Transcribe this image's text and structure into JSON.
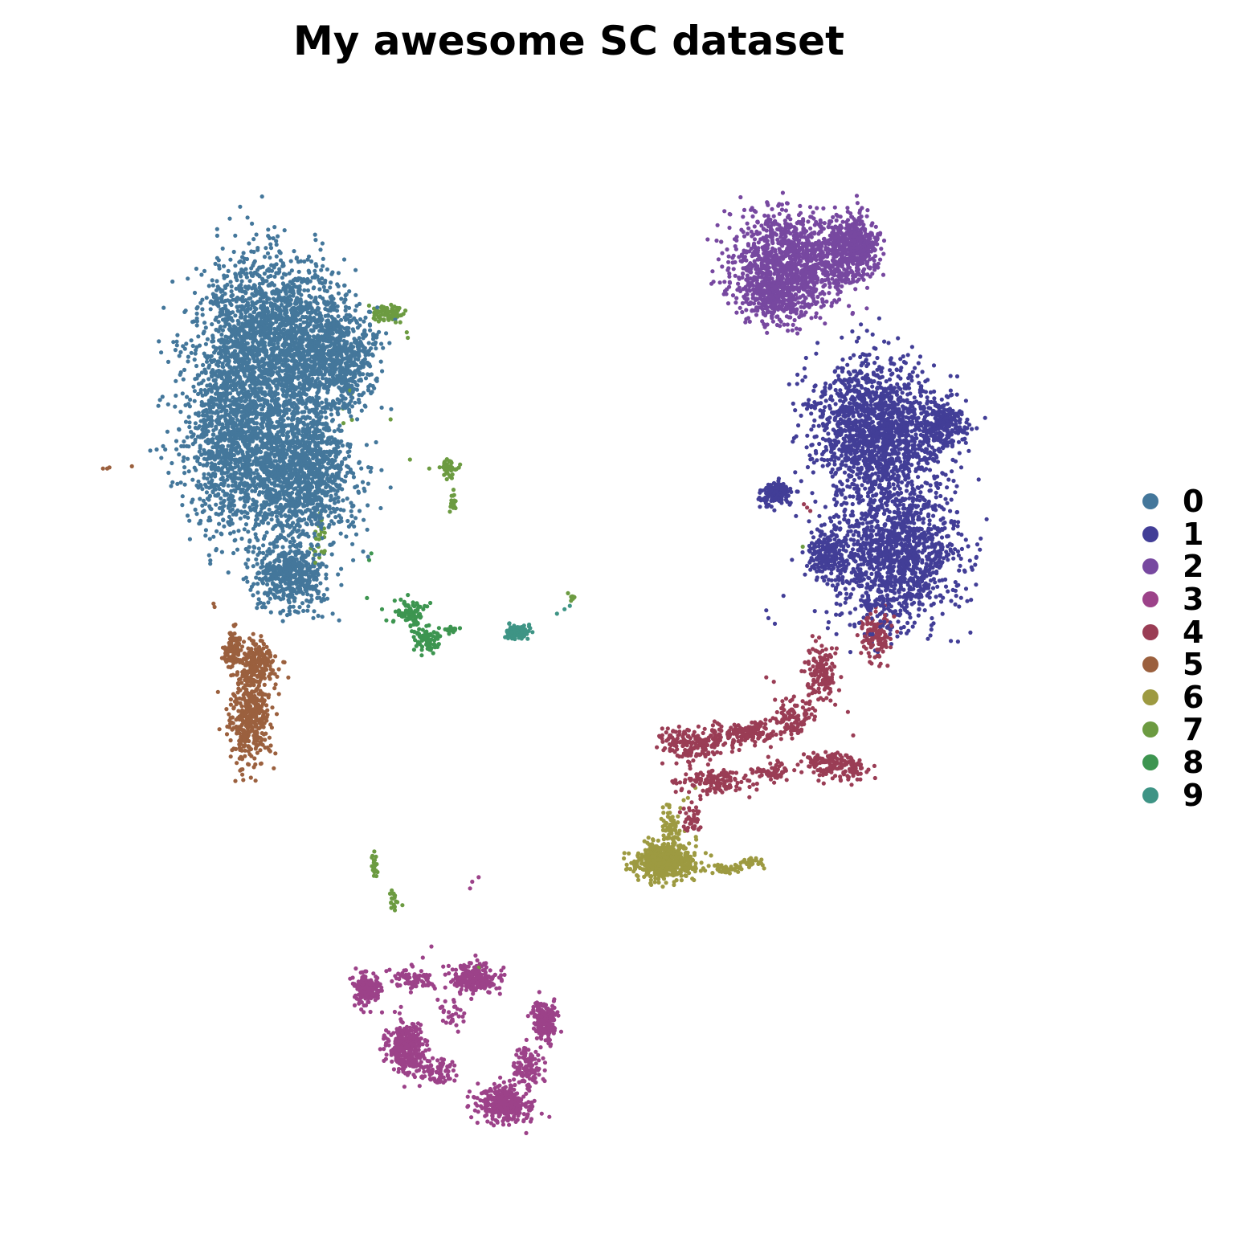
{
  "chart_data": {
    "type": "scatter",
    "title": "My awesome SC dataset",
    "xlabel": "",
    "ylabel": "",
    "xlim": [
      0,
      100
    ],
    "ylim": [
      0,
      100
    ],
    "grid": false,
    "legend_placement": "right",
    "series": [
      {
        "name": "0",
        "color": "#44779b",
        "count": 5600,
        "blobs": [
          [
            21.4,
            72.9,
            6.0,
            9.0,
            0.25
          ],
          [
            23.2,
            78.3,
            5.2,
            5.5,
            0.2
          ],
          [
            25.3,
            65.0,
            4.0,
            5.3,
            0.2
          ],
          [
            18.5,
            68.0,
            3.6,
            7.0,
            0.15
          ],
          [
            28.3,
            75.5,
            3.5,
            4.0,
            0.12
          ],
          [
            24.0,
            56.0,
            3.0,
            2.5,
            0.08
          ]
        ],
        "points": [
          [
            11.0,
            67.2
          ],
          [
            11.6,
            67.3
          ],
          [
            12.2,
            67.6
          ],
          [
            12.4,
            67.3
          ],
          [
            13.9,
            67.6
          ],
          [
            14.4,
            67.6
          ],
          [
            33.4,
            63.9
          ],
          [
            30.5,
            61.8
          ],
          [
            30.2,
            59.7
          ],
          [
            29.9,
            60.8
          ],
          [
            28.0,
            52.6
          ],
          [
            28.6,
            52.0
          ],
          [
            31.3,
            57.7
          ]
        ]
      },
      {
        "name": "1",
        "color": "#423e97",
        "count": 3400,
        "blobs": [
          [
            78.9,
            69.0,
            5.0,
            5.3,
            0.45
          ],
          [
            80.5,
            58.0,
            5.0,
            5.5,
            0.4
          ],
          [
            74.0,
            58.0,
            1.8,
            1.8,
            0.05
          ],
          [
            69.3,
            63.4,
            1.3,
            1.0,
            0.04
          ],
          [
            85.0,
            69.5,
            2.0,
            2.0,
            0.06
          ]
        ],
        "points": [
          [
            68.6,
            52.2
          ],
          [
            68.4,
            52.9
          ],
          [
            69.2,
            51.7
          ],
          [
            70.0,
            54.2
          ],
          [
            72.1,
            75.5
          ],
          [
            77.0,
            77.3
          ],
          [
            76.2,
            51.6
          ],
          [
            81.3,
            57.4
          ]
        ]
      },
      {
        "name": "2",
        "color": "#7748a0",
        "count": 1800,
        "blobs": [
          [
            70.7,
            84.3,
            4.8,
            3.8,
            0.6
          ],
          [
            76.5,
            85.5,
            2.3,
            2.3,
            0.25
          ],
          [
            69.0,
            81.0,
            2.5,
            2.0,
            0.15
          ]
        ],
        "points": [
          [
            64.2,
            85.9
          ],
          [
            78.8,
            83.6
          ],
          [
            71.3,
            77.7
          ]
        ]
      },
      {
        "name": "3",
        "color": "#9c4289",
        "count": 1500,
        "blobs": [
          [
            44.1,
            8.7,
            2.2,
            1.4,
            0.22
          ],
          [
            34.9,
            13.8,
            1.6,
            2.0,
            0.2
          ],
          [
            41.3,
            19.9,
            1.8,
            1.1,
            0.16
          ],
          [
            47.8,
            16.2,
            1.1,
            1.5,
            0.12
          ],
          [
            31.3,
            18.9,
            1.0,
            1.3,
            0.1
          ],
          [
            46.2,
            12.0,
            1.2,
            1.5,
            0.07
          ],
          [
            37.7,
            11.6,
            1.6,
            1.0,
            0.06
          ],
          [
            35.5,
            19.9,
            1.6,
            0.9,
            0.05
          ],
          [
            39.3,
            16.8,
            1.0,
            1.3,
            0.02
          ]
        ],
        "points": [
          [
            41.0,
            28.6
          ],
          [
            41.6,
            29.0
          ],
          [
            40.8,
            28.0
          ],
          [
            32.6,
            16.9
          ],
          [
            33.0,
            20.6
          ],
          [
            36.4,
            21.8
          ],
          [
            37.2,
            22.8
          ],
          [
            38.3,
            21.0
          ]
        ]
      },
      {
        "name": "4",
        "color": "#9a3d55",
        "count": 1100,
        "blobs": [
          [
            78.7,
            50.5,
            1.2,
            2.0,
            0.12
          ],
          [
            73.6,
            47.3,
            1.2,
            2.0,
            0.14
          ],
          [
            71.0,
            43.5,
            1.6,
            1.4,
            0.1
          ],
          [
            66.9,
            42.0,
            3.0,
            1.0,
            0.16
          ],
          [
            61.5,
            40.9,
            2.5,
            1.3,
            0.18
          ],
          [
            63.6,
            37.6,
            2.8,
            1.0,
            0.14
          ],
          [
            69.0,
            38.5,
            1.5,
            0.8,
            0.06
          ],
          [
            74.2,
            39.3,
            2.0,
            0.8,
            0.1
          ],
          [
            76.3,
            38.5,
            2.0,
            0.9,
            0.06
          ],
          [
            61.5,
            34.2,
            0.7,
            1.2,
            0.04
          ]
        ],
        "points": [
          [
            72.7,
            50.6
          ],
          [
            68.4,
            46.9
          ],
          [
            69.1,
            46.5
          ],
          [
            76.0,
            43.8
          ],
          [
            76.5,
            41.7
          ],
          [
            72.2,
            62.1
          ],
          [
            72.5,
            61.8
          ],
          [
            71.9,
            62.4
          ]
        ]
      },
      {
        "name": "5",
        "color": "#9b603e",
        "count": 700,
        "blobs": [
          [
            20.3,
            43.4,
            1.6,
            3.6,
            0.55
          ],
          [
            21.0,
            48.0,
            1.6,
            2.0,
            0.3
          ],
          [
            18.7,
            49.5,
            0.8,
            1.6,
            0.15
          ]
        ],
        "points": [
          [
            6.6,
            65.6
          ],
          [
            7.0,
            65.6
          ],
          [
            7.2,
            65.7
          ],
          [
            9.3,
            65.8
          ],
          [
            17.0,
            53.2
          ],
          [
            16.9,
            53.5
          ]
        ]
      },
      {
        "name": "6",
        "color": "#9d9a41",
        "count": 650,
        "blobs": [
          [
            58.9,
            30.5,
            2.3,
            1.4,
            0.8
          ],
          [
            59.5,
            33.5,
            0.8,
            1.5,
            0.1
          ],
          [
            64.5,
            29.8,
            1.4,
            0.4,
            0.06
          ],
          [
            67.0,
            30.3,
            1.0,
            0.4,
            0.04
          ]
        ],
        "points": [
          [
            61.1,
            36.1
          ],
          [
            60.4,
            35.2
          ],
          [
            60.7,
            35.9
          ],
          [
            61.8,
            37.0
          ]
        ]
      },
      {
        "name": "7",
        "color": "#6c9b41",
        "count": 210,
        "blobs": [
          [
            33.2,
            79.5,
            1.4,
            0.6,
            0.35
          ],
          [
            38.9,
            65.6,
            0.7,
            0.7,
            0.18
          ],
          [
            39.2,
            62.6,
            0.3,
            1.0,
            0.1
          ],
          [
            26.7,
            59.9,
            0.6,
            1.8,
            0.12
          ],
          [
            31.9,
            30.1,
            0.3,
            0.9,
            0.1
          ],
          [
            33.6,
            27.1,
            0.3,
            0.7,
            0.08
          ],
          [
            50.4,
            54.0,
            0.4,
            0.4,
            0.04
          ],
          [
            28.5,
            71.9,
            1.5,
            3.0,
            0.03
          ]
        ],
        "points": [
          [
            34.9,
            77.8
          ],
          [
            35.0,
            77.3
          ],
          [
            34.3,
            78.7
          ],
          [
            33.4,
            70.0
          ],
          [
            35.2,
            66.4
          ],
          [
            37.0,
            65.6
          ],
          [
            41.6,
            20.9
          ],
          [
            34.5,
            26.5
          ],
          [
            64.2,
            85.9
          ],
          [
            71.8,
            58.6
          ],
          [
            79.1,
            59.6
          ]
        ]
      },
      {
        "name": "8",
        "color": "#3d9550",
        "count": 175,
        "blobs": [
          [
            35.2,
            52.7,
            1.2,
            1.0,
            0.45
          ],
          [
            36.8,
            50.3,
            1.0,
            0.9,
            0.45
          ],
          [
            39.0,
            51.2,
            0.6,
            0.3,
            0.1
          ]
        ],
        "points": [
          [
            31.4,
            57.4
          ],
          [
            31.6,
            58.0
          ],
          [
            31.2,
            54.0
          ],
          [
            32.6,
            53.0
          ],
          [
            33.0,
            52.0
          ]
        ]
      },
      {
        "name": "9",
        "color": "#3e9485",
        "count": 80,
        "blobs": [
          [
            45.3,
            51.0,
            1.1,
            0.6,
            1.0
          ]
        ],
        "points": [
          [
            49.6,
            53.0
          ],
          [
            50.1,
            53.3
          ],
          [
            48.9,
            52.6
          ]
        ]
      }
    ]
  }
}
